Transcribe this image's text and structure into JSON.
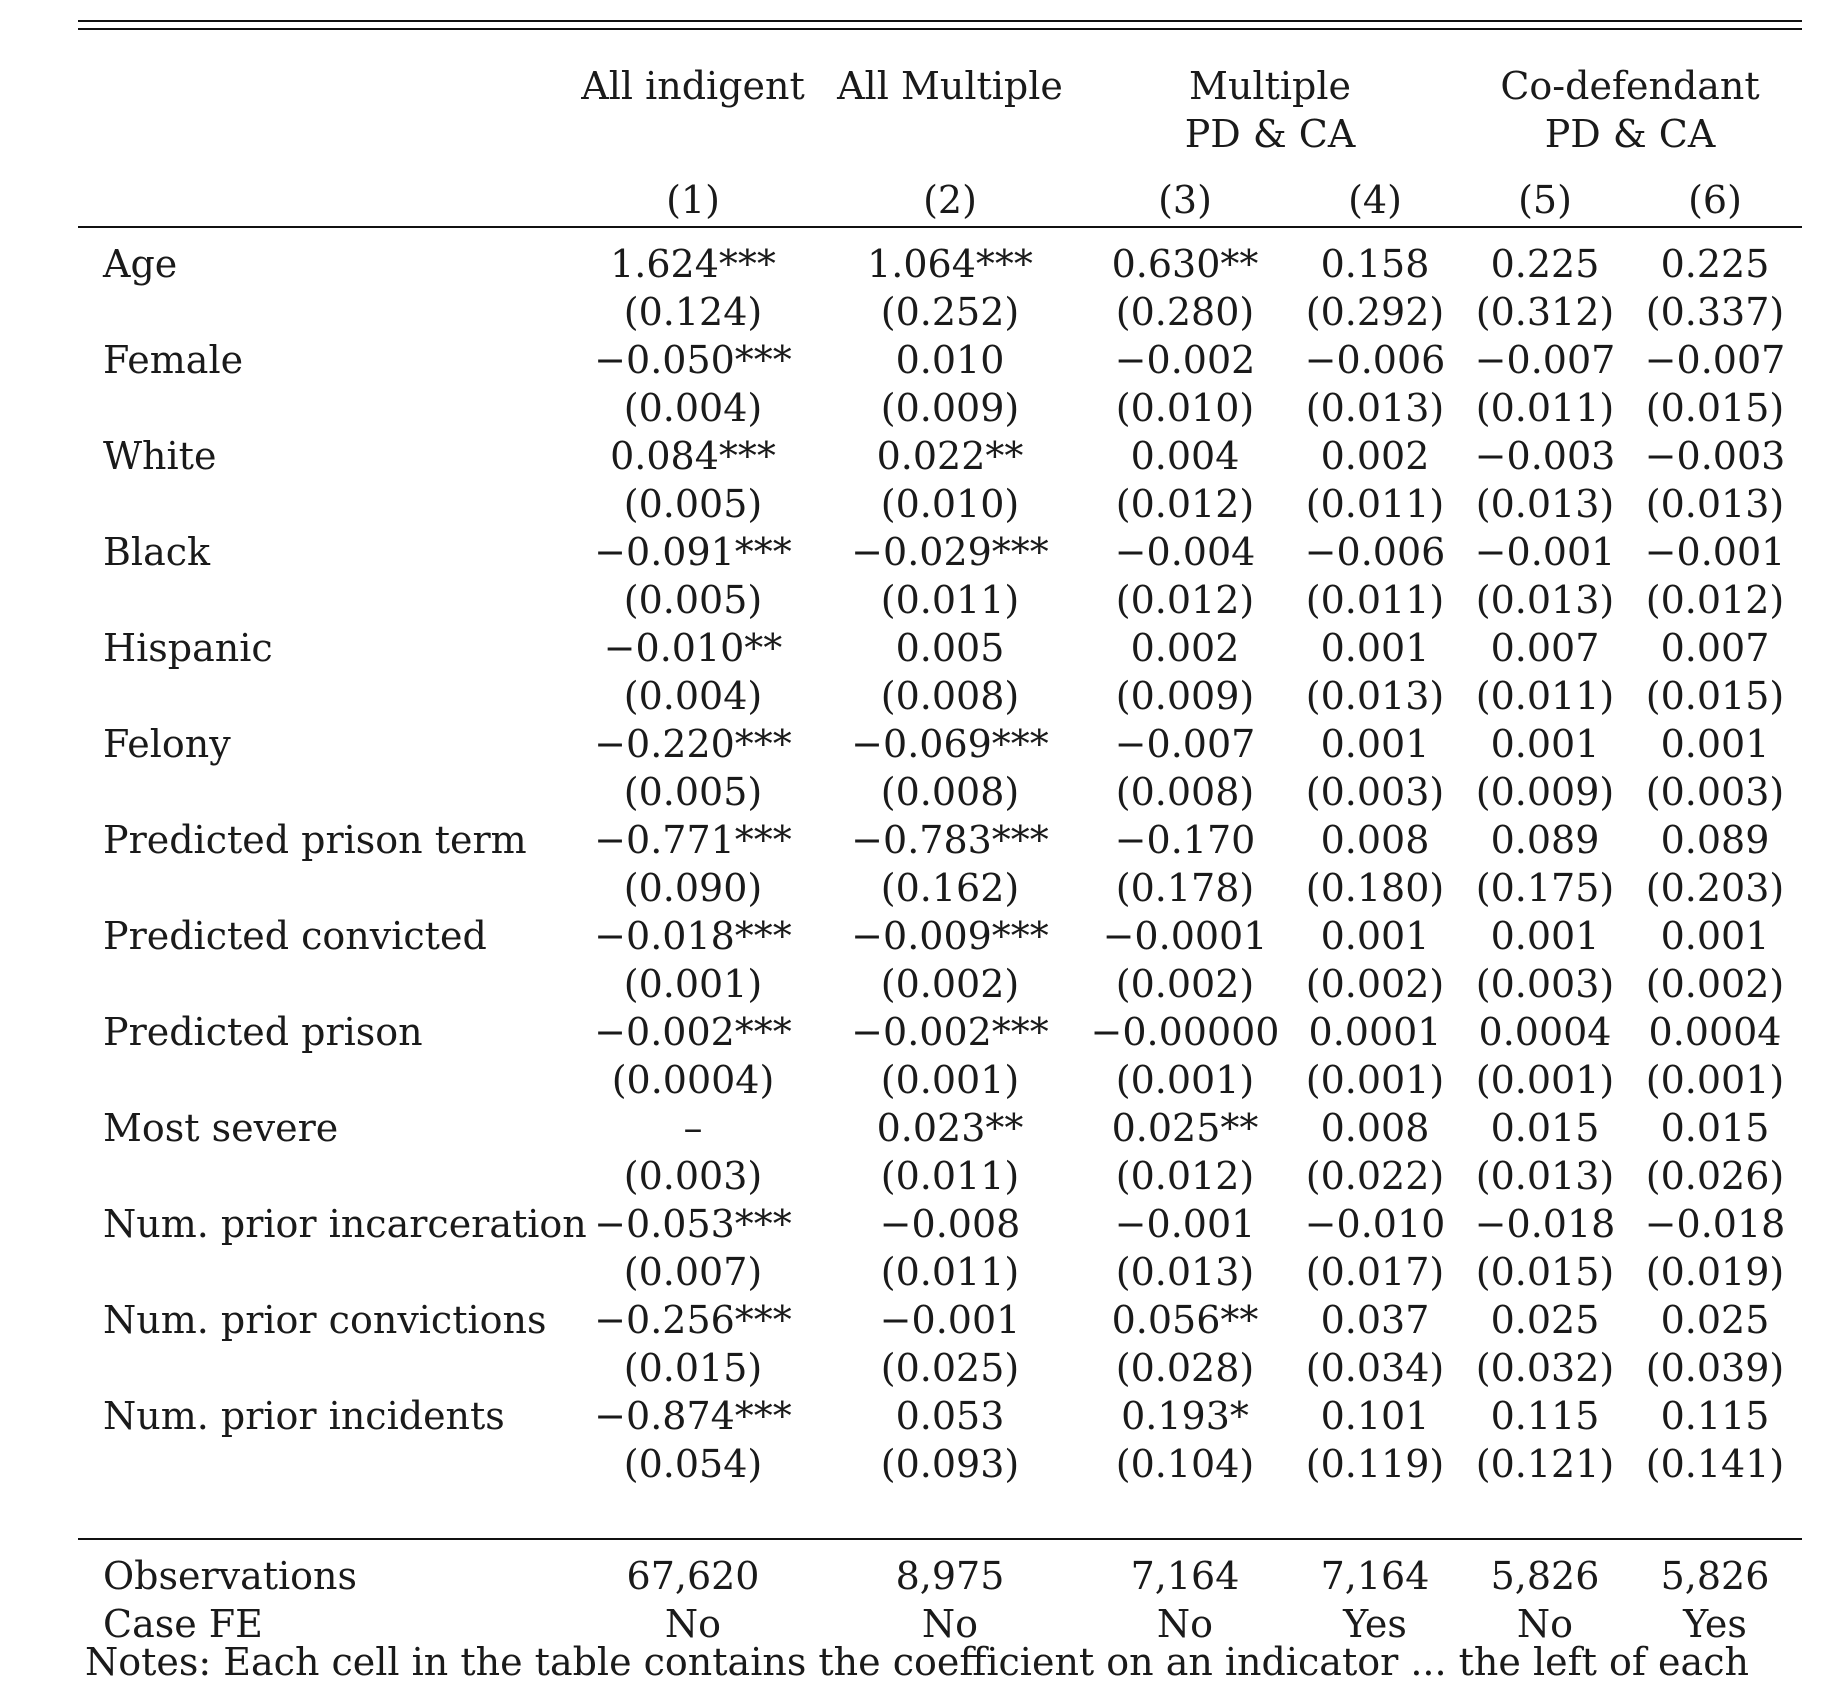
{
  "table": {
    "headers": {
      "group_row1": [
        "All indigent",
        "All Multiple",
        "Multiple",
        "Co-defendant"
      ],
      "group_row2": [
        "",
        "",
        "PD & CA",
        "PD & CA"
      ],
      "col_numbers": [
        "(1)",
        "(2)",
        "(3)",
        "(4)",
        "(5)",
        "(6)"
      ]
    },
    "rows": [
      {
        "label": "Age",
        "coef": [
          "1.624***",
          "1.064***",
          "0.630**",
          "0.158",
          "0.225",
          "0.225"
        ],
        "se": [
          "(0.124)",
          "(0.252)",
          "(0.280)",
          "(0.292)",
          "(0.312)",
          "(0.337)"
        ]
      },
      {
        "label": "Female",
        "coef": [
          "−0.050***",
          "0.010",
          "−0.002",
          "−0.006",
          "−0.007",
          "−0.007"
        ],
        "se": [
          "(0.004)",
          "(0.009)",
          "(0.010)",
          "(0.013)",
          "(0.011)",
          "(0.015)"
        ]
      },
      {
        "label": "White",
        "coef": [
          "0.084***",
          "0.022**",
          "0.004",
          "0.002",
          "−0.003",
          "−0.003"
        ],
        "se": [
          "(0.005)",
          "(0.010)",
          "(0.012)",
          "(0.011)",
          "(0.013)",
          "(0.013)"
        ]
      },
      {
        "label": "Black",
        "coef": [
          "−0.091***",
          "−0.029***",
          "−0.004",
          "−0.006",
          "−0.001",
          "−0.001"
        ],
        "se": [
          "(0.005)",
          "(0.011)",
          "(0.012)",
          "(0.011)",
          "(0.013)",
          "(0.012)"
        ]
      },
      {
        "label": "Hispanic",
        "coef": [
          "−0.010**",
          "0.005",
          "0.002",
          "0.001",
          "0.007",
          "0.007"
        ],
        "se": [
          "(0.004)",
          "(0.008)",
          "(0.009)",
          "(0.013)",
          "(0.011)",
          "(0.015)"
        ]
      },
      {
        "label": "Felony",
        "coef": [
          "−0.220***",
          "−0.069***",
          "−0.007",
          "0.001",
          "0.001",
          "0.001"
        ],
        "se": [
          "(0.005)",
          "(0.008)",
          "(0.008)",
          "(0.003)",
          "(0.009)",
          "(0.003)"
        ]
      },
      {
        "label": "Predicted prison term",
        "coef": [
          "−0.771***",
          "−0.783***",
          "−0.170",
          "0.008",
          "0.089",
          "0.089"
        ],
        "se": [
          "(0.090)",
          "(0.162)",
          "(0.178)",
          "(0.180)",
          "(0.175)",
          "(0.203)"
        ]
      },
      {
        "label": "Predicted convicted",
        "coef": [
          "−0.018***",
          "−0.009***",
          "−0.0001",
          "0.001",
          "0.001",
          "0.001"
        ],
        "se": [
          "(0.001)",
          "(0.002)",
          "(0.002)",
          "(0.002)",
          "(0.003)",
          "(0.002)"
        ]
      },
      {
        "label": "Predicted prison",
        "coef": [
          "−0.002***",
          "−0.002***",
          "−0.00000",
          "0.0001",
          "0.0004",
          "0.0004"
        ],
        "se": [
          "(0.0004)",
          "(0.001)",
          "(0.001)",
          "(0.001)",
          "(0.001)",
          "(0.001)"
        ]
      },
      {
        "label": "Most severe",
        "coef": [
          "–",
          "0.023**",
          "0.025**",
          "0.008",
          "0.015",
          "0.015"
        ],
        "se": [
          "(0.003)",
          "(0.011)",
          "(0.012)",
          "(0.022)",
          "(0.013)",
          "(0.026)"
        ]
      },
      {
        "label": "Num. prior incarceration",
        "coef": [
          "−0.053***",
          "−0.008",
          "−0.001",
          "−0.010",
          "−0.018",
          "−0.018"
        ],
        "se": [
          "(0.007)",
          "(0.011)",
          "(0.013)",
          "(0.017)",
          "(0.015)",
          "(0.019)"
        ]
      },
      {
        "label": "Num. prior convictions",
        "coef": [
          "−0.256***",
          "−0.001",
          "0.056**",
          "0.037",
          "0.025",
          "0.025"
        ],
        "se": [
          "(0.015)",
          "(0.025)",
          "(0.028)",
          "(0.034)",
          "(0.032)",
          "(0.039)"
        ]
      },
      {
        "label": "Num. prior incidents",
        "coef": [
          "−0.874***",
          "0.053",
          "0.193*",
          "0.101",
          "0.115",
          "0.115"
        ],
        "se": [
          "(0.054)",
          "(0.093)",
          "(0.104)",
          "(0.119)",
          "(0.121)",
          "(0.141)"
        ]
      }
    ],
    "footer": [
      {
        "label": "Observations",
        "values": [
          "67,620",
          "8,975",
          "7,164",
          "7,164",
          "5,826",
          "5,826"
        ]
      },
      {
        "label": "Case FE",
        "values": [
          "No",
          "No",
          "No",
          "Yes",
          "No",
          "Yes"
        ]
      }
    ]
  },
  "notes": "Notes: Each cell in the table contains the coefficient on an indicator ... the left of each"
}
